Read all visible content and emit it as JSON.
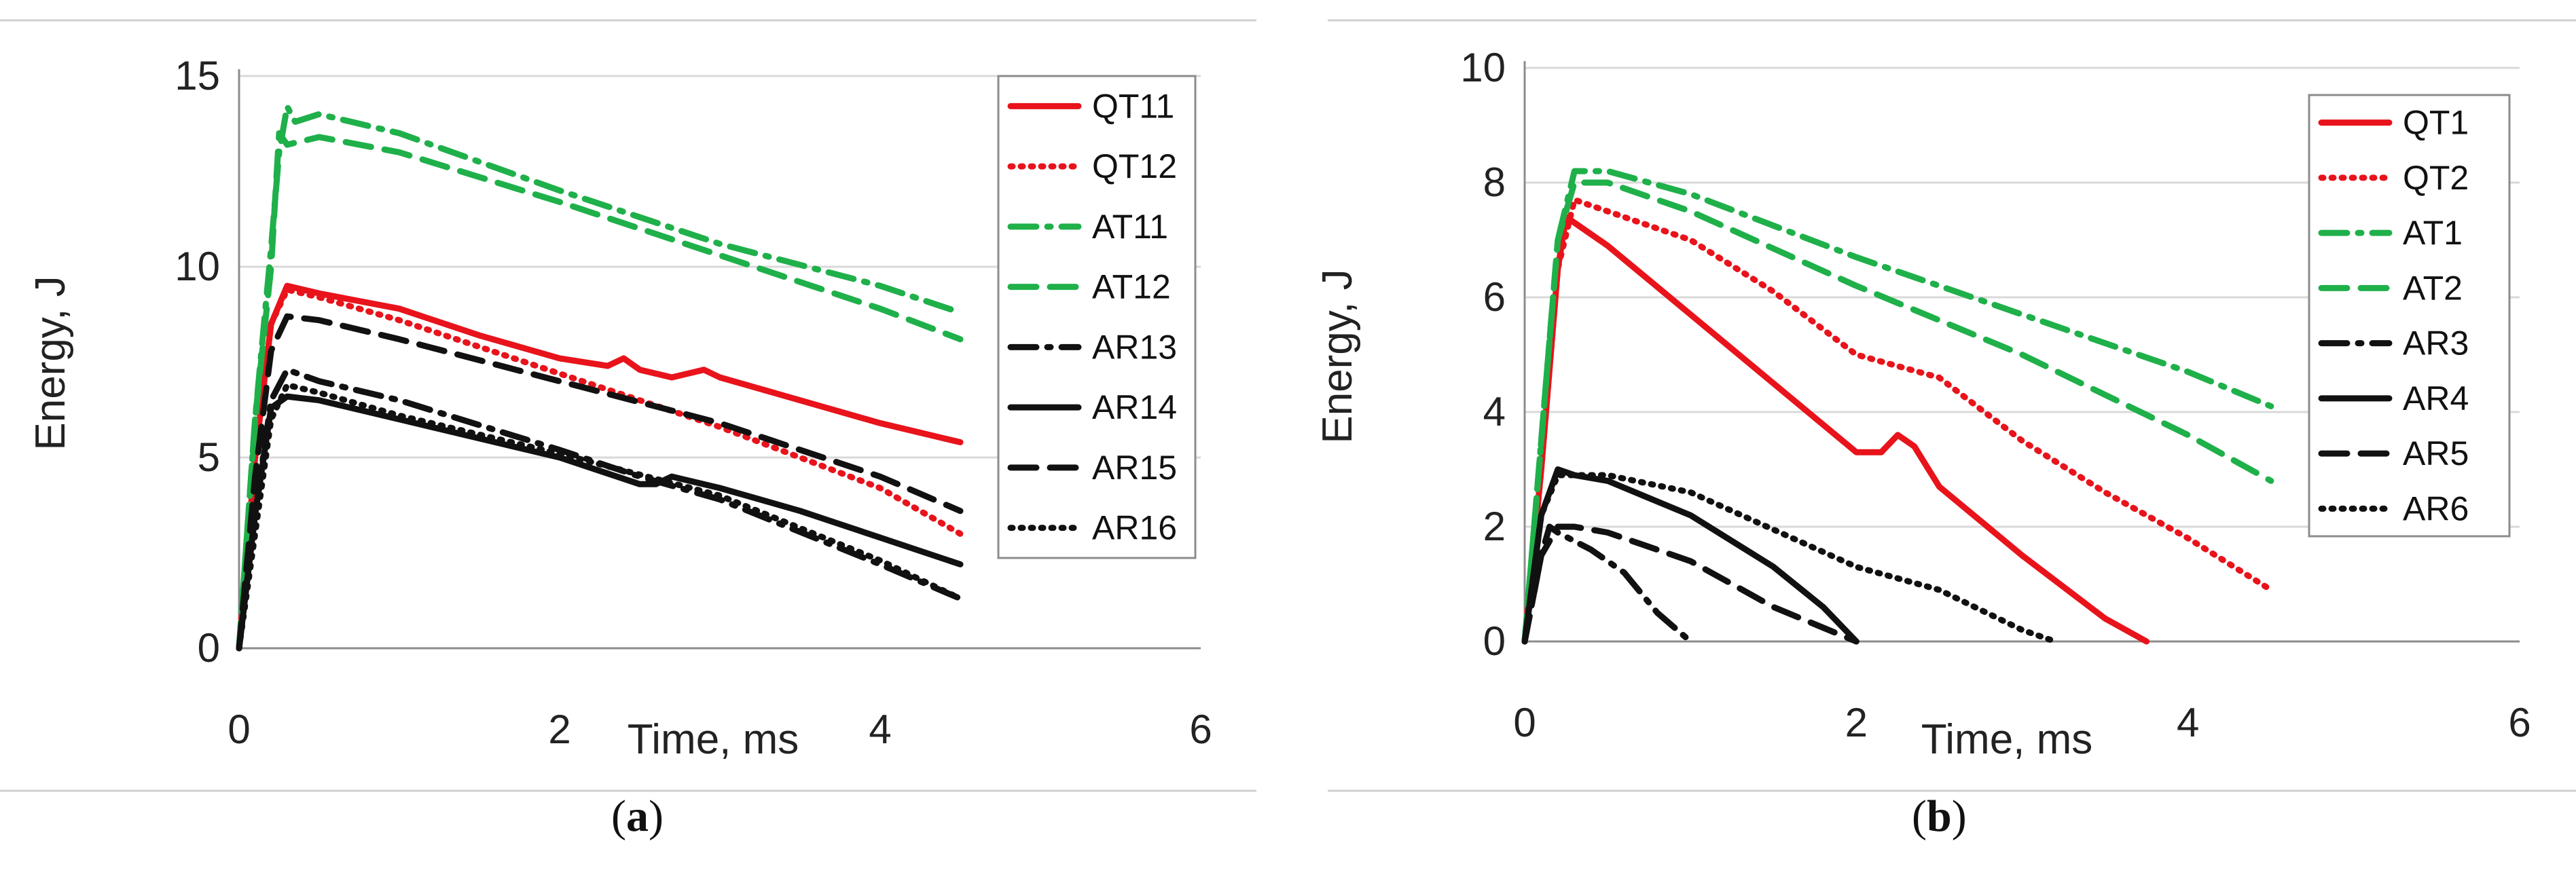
{
  "chart_data": [
    {
      "type": "line",
      "panel": "(a)",
      "caption_letter": "a",
      "xlabel": "Time, ms",
      "ylabel": "Energy, J",
      "xlim": [
        0,
        6
      ],
      "ylim": [
        0,
        15
      ],
      "xticks": [
        "0",
        "2",
        "4",
        "6"
      ],
      "yticks": [
        "0",
        "5",
        "10",
        "15"
      ],
      "legend_position": "top-right",
      "series": [
        {
          "name": "QT11",
          "color": "#e8131b",
          "style": "solid",
          "x": [
            0,
            0.1,
            0.2,
            0.3,
            0.5,
            1.0,
            1.5,
            2.0,
            2.3,
            2.4,
            2.5,
            2.7,
            2.9,
            3.0,
            3.5,
            4.0,
            4.5
          ],
          "y": [
            0,
            5.0,
            8.5,
            9.5,
            9.3,
            8.9,
            8.2,
            7.6,
            7.4,
            7.6,
            7.3,
            7.1,
            7.3,
            7.1,
            6.5,
            5.9,
            5.4
          ]
        },
        {
          "name": "QT12",
          "color": "#e8131b",
          "style": "dotted",
          "x": [
            0,
            0.1,
            0.2,
            0.3,
            0.5,
            1.0,
            2.0,
            3.0,
            4.0,
            4.5
          ],
          "y": [
            0,
            5.0,
            8.5,
            9.4,
            9.2,
            8.6,
            7.2,
            5.8,
            4.2,
            3.0
          ]
        },
        {
          "name": "AT11",
          "color": "#1fb04a",
          "style": "dashdot",
          "x": [
            0,
            0.1,
            0.2,
            0.25,
            0.3,
            0.35,
            0.5,
            1.0,
            2.0,
            3.0,
            4.0,
            4.5
          ],
          "y": [
            0,
            6.0,
            10.5,
            13.0,
            14.2,
            13.8,
            14.0,
            13.5,
            12.0,
            10.6,
            9.5,
            8.8
          ]
        },
        {
          "name": "AT12",
          "color": "#1fb04a",
          "style": "dashed",
          "x": [
            0,
            0.1,
            0.2,
            0.25,
            0.3,
            0.5,
            1.0,
            2.0,
            3.0,
            4.0,
            4.5
          ],
          "y": [
            0,
            6.0,
            10.0,
            13.5,
            13.2,
            13.4,
            13.0,
            11.7,
            10.3,
            8.9,
            8.1
          ]
        },
        {
          "name": "AR13",
          "color": "#111111",
          "style": "dashdot",
          "x": [
            0,
            0.1,
            0.2,
            0.3,
            0.5,
            1.0,
            2.0,
            2.5,
            3.0,
            4.0,
            4.5
          ],
          "y": [
            0,
            3.5,
            6.5,
            7.3,
            7.0,
            6.5,
            5.2,
            4.5,
            3.9,
            2.2,
            1.3
          ]
        },
        {
          "name": "AR14",
          "color": "#111111",
          "style": "solid",
          "x": [
            0,
            0.1,
            0.2,
            0.3,
            0.5,
            1.0,
            2.0,
            2.5,
            2.6,
            2.7,
            2.8,
            3.0,
            3.5,
            4.0,
            4.5
          ],
          "y": [
            0,
            3.5,
            6.3,
            6.6,
            6.5,
            6.0,
            5.0,
            4.3,
            4.3,
            4.5,
            4.4,
            4.2,
            3.6,
            2.9,
            2.2
          ]
        },
        {
          "name": "AR15",
          "color": "#111111",
          "style": "dashed",
          "x": [
            0,
            0.1,
            0.2,
            0.3,
            0.5,
            1.0,
            2.0,
            3.0,
            4.0,
            4.5
          ],
          "y": [
            0,
            4.5,
            7.8,
            8.7,
            8.6,
            8.1,
            7.0,
            5.9,
            4.5,
            3.6
          ]
        },
        {
          "name": "AR16",
          "color": "#111111",
          "style": "dotted",
          "x": [
            0,
            0.1,
            0.2,
            0.3,
            0.5,
            1.0,
            2.0,
            3.0,
            4.0,
            4.5
          ],
          "y": [
            0,
            3.0,
            6.0,
            6.9,
            6.7,
            6.1,
            5.1,
            4.0,
            2.3,
            1.3
          ]
        }
      ]
    },
    {
      "type": "line",
      "panel": "(b)",
      "caption_letter": "b",
      "xlabel": "Time, ms",
      "ylabel": "Energy, J",
      "xlim": [
        0,
        6
      ],
      "ylim": [
        0,
        10
      ],
      "xticks": [
        "0",
        "2",
        "4",
        "6"
      ],
      "yticks": [
        "0",
        "2",
        "4",
        "6",
        "8",
        "10"
      ],
      "legend_position": "top-right",
      "series": [
        {
          "name": "QT1",
          "color": "#e8131b",
          "style": "solid",
          "x": [
            0,
            0.1,
            0.2,
            0.25,
            0.3,
            0.5,
            1.0,
            1.5,
            2.0,
            2.15,
            2.25,
            2.35,
            2.5,
            3.0,
            3.5,
            3.75
          ],
          "y": [
            0,
            3.0,
            6.5,
            7.4,
            7.3,
            6.9,
            5.7,
            4.5,
            3.3,
            3.3,
            3.6,
            3.4,
            2.7,
            1.5,
            0.4,
            0
          ]
        },
        {
          "name": "QT2",
          "color": "#e8131b",
          "style": "dotted",
          "x": [
            0,
            0.1,
            0.2,
            0.3,
            0.5,
            1.0,
            1.5,
            2.0,
            2.5,
            3.0,
            3.5,
            4.0,
            4.5
          ],
          "y": [
            0,
            3.0,
            6.5,
            7.7,
            7.5,
            7.0,
            6.1,
            5.0,
            4.6,
            3.5,
            2.6,
            1.8,
            0.9
          ]
        },
        {
          "name": "AT1",
          "color": "#1fb04a",
          "style": "dashdot",
          "x": [
            0,
            0.1,
            0.2,
            0.3,
            0.5,
            1.0,
            2.0,
            3.0,
            4.0,
            4.5
          ],
          "y": [
            0,
            3.5,
            7.0,
            8.2,
            8.2,
            7.8,
            6.7,
            5.7,
            4.7,
            4.1
          ]
        },
        {
          "name": "AT2",
          "color": "#1fb04a",
          "style": "dashed",
          "x": [
            0,
            0.1,
            0.2,
            0.3,
            0.5,
            1.0,
            2.0,
            3.0,
            4.0,
            4.5
          ],
          "y": [
            0,
            3.5,
            7.0,
            8.0,
            8.0,
            7.5,
            6.2,
            5.0,
            3.6,
            2.8
          ]
        },
        {
          "name": "AR3",
          "color": "#111111",
          "style": "dashdot",
          "x": [
            0,
            0.1,
            0.15,
            0.2,
            0.4,
            0.6,
            0.8,
            1.0
          ],
          "y": [
            0,
            1.5,
            2.0,
            1.9,
            1.6,
            1.2,
            0.5,
            0
          ]
        },
        {
          "name": "AR4",
          "color": "#111111",
          "style": "solid",
          "x": [
            0,
            0.1,
            0.2,
            0.3,
            0.5,
            1.0,
            1.5,
            1.8,
            2.0
          ],
          "y": [
            0,
            2.2,
            3.0,
            2.9,
            2.8,
            2.2,
            1.3,
            0.6,
            0
          ]
        },
        {
          "name": "AR5",
          "color": "#111111",
          "style": "dashed",
          "x": [
            0,
            0.1,
            0.2,
            0.3,
            0.5,
            1.0,
            1.5,
            2.0
          ],
          "y": [
            0,
            1.5,
            2.0,
            2.0,
            1.9,
            1.4,
            0.6,
            0
          ]
        },
        {
          "name": "AR6",
          "color": "#111111",
          "style": "dotted",
          "x": [
            0,
            0.1,
            0.2,
            0.3,
            0.5,
            1.0,
            2.0,
            2.5,
            3.0,
            3.2
          ],
          "y": [
            0,
            2.2,
            2.9,
            2.9,
            2.9,
            2.6,
            1.3,
            0.9,
            0.2,
            0
          ]
        }
      ]
    }
  ]
}
